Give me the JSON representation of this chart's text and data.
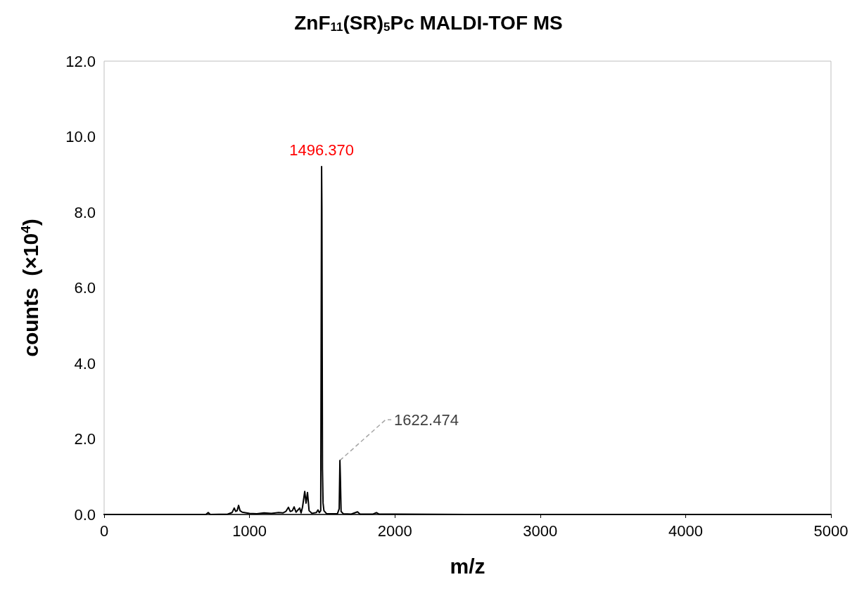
{
  "chart_data": {
    "type": "line",
    "title": "ZnF$_{11}$(SR)$_{5}$Pc MALDI-TOF MS",
    "xlabel": "m/z",
    "ylabel": "counts  (×10$^{4}$)",
    "x": [
      0,
      500,
      700,
      716,
      730,
      850,
      880,
      895,
      905,
      915,
      925,
      935,
      950,
      1000,
      1050,
      1100,
      1150,
      1200,
      1230,
      1250,
      1268,
      1280,
      1295,
      1307,
      1320,
      1345,
      1355,
      1365,
      1380,
      1389,
      1399,
      1410,
      1430,
      1460,
      1471,
      1480,
      1490,
      1496,
      1498,
      1502,
      1506,
      1512,
      1530,
      1605,
      1617,
      1622,
      1625,
      1630,
      1645,
      1700,
      1743,
      1760,
      1850,
      1873,
      1890,
      2000,
      2500,
      5000
    ],
    "series": [
      {
        "color": "#000000",
        "values": [
          0,
          0,
          0,
          0.05,
          0,
          0.01,
          0.05,
          0.17,
          0.08,
          0.1,
          0.24,
          0.1,
          0.06,
          0.03,
          0.02,
          0.04,
          0.03,
          0.05,
          0.04,
          0.08,
          0.19,
          0.08,
          0.1,
          0.2,
          0.06,
          0.17,
          0.04,
          0.2,
          0.61,
          0.3,
          0.58,
          0.1,
          0.03,
          0.05,
          0.12,
          0.05,
          0.1,
          9.21,
          8.09,
          1.2,
          0.3,
          0.1,
          0.02,
          0.02,
          0.15,
          1.43,
          1.0,
          0.08,
          0.02,
          0.01,
          0.07,
          0.01,
          0.01,
          0.05,
          0.01,
          0.01,
          0,
          0
        ]
      }
    ],
    "xlim": [
      0,
      5000
    ],
    "xticks": [
      0,
      1000,
      2000,
      3000,
      4000,
      5000
    ],
    "ylim": [
      0,
      12
    ],
    "yticks": [
      {
        "value": 0,
        "label": "0.0"
      },
      {
        "value": 2,
        "label": "2.0"
      },
      {
        "value": 4,
        "label": "4.0"
      },
      {
        "value": 6,
        "label": "6.0"
      },
      {
        "value": 8,
        "label": "8.0"
      },
      {
        "value": 10,
        "label": "10.0"
      },
      {
        "value": 12,
        "label": "12.0"
      }
    ],
    "annotations": [
      {
        "text": "1496.370",
        "x": 1496,
        "y": 9.21
      },
      {
        "text": "1622.474",
        "x": 1622,
        "y": 1.43
      }
    ],
    "grid": false,
    "marker": "none",
    "line_style": "solid"
  }
}
